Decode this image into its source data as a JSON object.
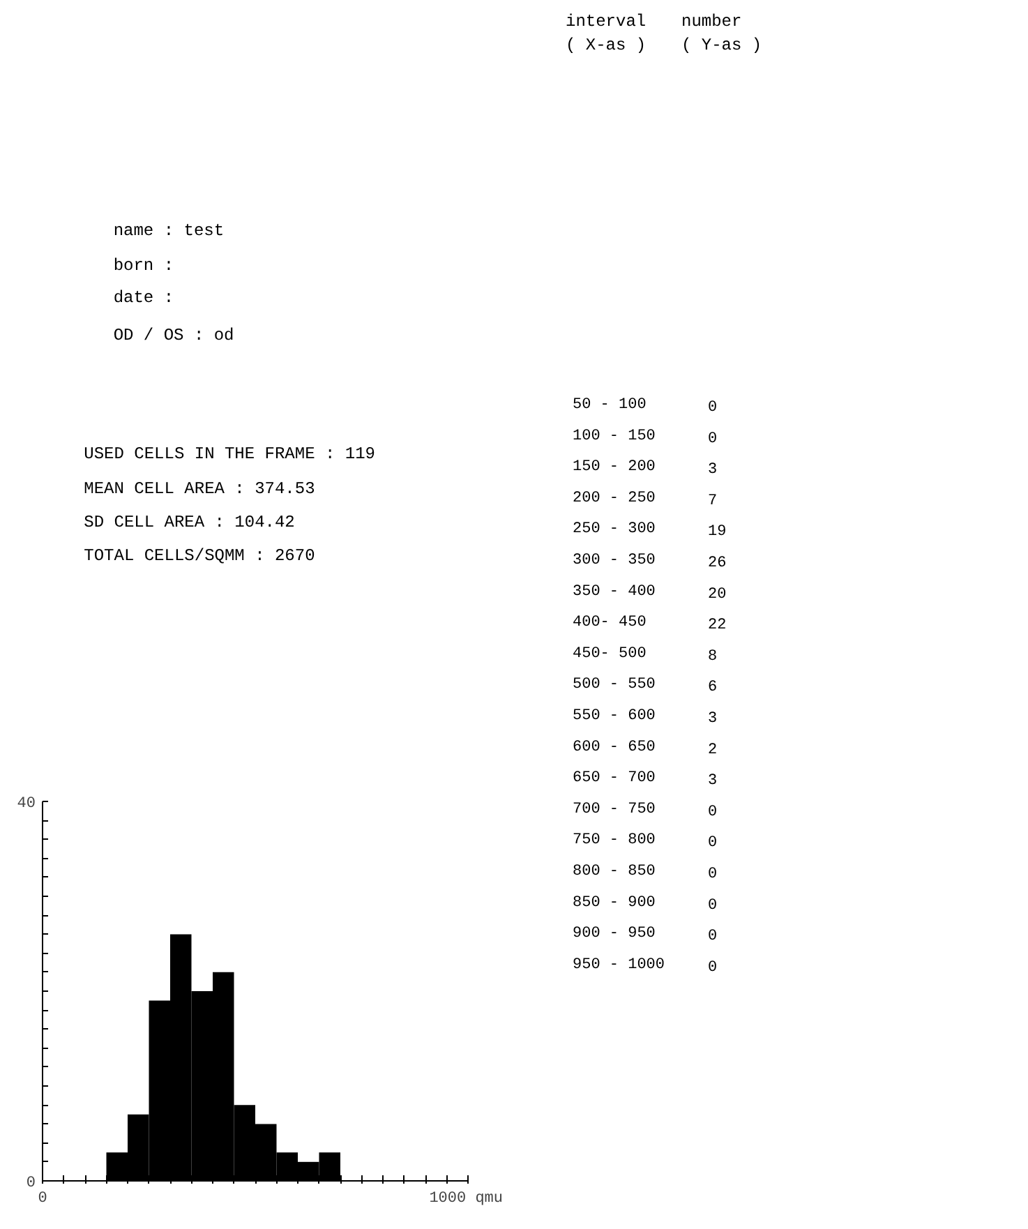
{
  "chart_data": [
    {
      "type": "histogram",
      "bins": [
        50,
        100,
        150,
        200,
        250,
        300,
        350,
        400,
        450,
        500,
        550,
        600,
        650,
        700,
        750,
        800,
        850,
        900,
        950,
        1000
      ],
      "values": [
        0,
        0,
        3,
        7,
        19,
        26,
        20,
        22,
        8,
        6,
        3,
        2,
        3,
        0,
        0,
        0,
        0,
        0,
        0
      ],
      "color": "#000000",
      "xlim": [
        0,
        1000
      ],
      "xticks": [
        {
          "value": 0,
          "label": "0"
        },
        {
          "value": 50,
          "label": null
        },
        {
          "value": 100,
          "label": null
        },
        {
          "value": 150,
          "label": null
        },
        {
          "value": 200,
          "label": null
        },
        {
          "value": 250,
          "label": null
        },
        {
          "value": 300,
          "label": null
        },
        {
          "value": 350,
          "label": null
        },
        {
          "value": 400,
          "label": null
        },
        {
          "value": 450,
          "label": null
        },
        {
          "value": 500,
          "label": null
        },
        {
          "value": 550,
          "label": null
        },
        {
          "value": 600,
          "label": null
        },
        {
          "value": 650,
          "label": null
        },
        {
          "value": 700,
          "label": null
        },
        {
          "value": 750,
          "label": null
        },
        {
          "value": 800,
          "label": null
        },
        {
          "value": 850,
          "label": null
        },
        {
          "value": 900,
          "label": null
        },
        {
          "value": 950,
          "label": null
        },
        {
          "value": 1000,
          "label": "1000 qmu"
        }
      ],
      "ylim": [
        0,
        40
      ],
      "yticks": [
        {
          "value": 0,
          "label": "0"
        },
        {
          "value": 2,
          "label": null
        },
        {
          "value": 4,
          "label": null
        },
        {
          "value": 6,
          "label": null
        },
        {
          "value": 8,
          "label": null
        },
        {
          "value": 10,
          "label": null
        },
        {
          "value": 12,
          "label": null
        },
        {
          "value": 14,
          "label": null
        },
        {
          "value": 16,
          "label": null
        },
        {
          "value": 18,
          "label": null
        },
        {
          "value": 20,
          "label": null
        },
        {
          "value": 22,
          "label": null
        },
        {
          "value": 24,
          "label": null
        },
        {
          "value": 26,
          "label": null
        },
        {
          "value": 28,
          "label": null
        },
        {
          "value": 30,
          "label": null
        },
        {
          "value": 32,
          "label": null
        },
        {
          "value": 34,
          "label": null
        },
        {
          "value": 36,
          "label": null
        },
        {
          "value": 38,
          "label": null
        },
        {
          "value": 40,
          "label": "40"
        }
      ],
      "grid": false,
      "annotations": [
        "name :       test",
        "born :",
        "date :",
        "OD / OS :    od",
        "USED CELLS IN THE FRAME : 119",
        "MEAN CELL AREA            :  374.53",
        "SD   CELL AREA            :  104.42",
        "TOTAL CELLS/SQMM          : 2670"
      ]
    },
    {
      "type": "other",
      "annotations": [
        "interval\n( X-as )",
        "number\n( Y-as )",
        "50 - 100",
        "0",
        "100 - 150",
        "0",
        "150 - 200",
        "3",
        "200 - 250",
        "7",
        "250 - 300",
        "19",
        "300 - 350",
        "26",
        "350 - 400",
        "20",
        "400- 450",
        "22",
        "450- 500",
        "8",
        "500 - 550",
        "6",
        "550 - 600",
        "3",
        "600 - 650",
        "2",
        "650 - 700",
        "3",
        "700 - 750",
        "0",
        "750 - 800",
        "0",
        "800 - 850",
        "0",
        "850 - 900",
        "0",
        "900 - 950",
        "0",
        "950 - 1000",
        "0"
      ]
    }
  ]
}
